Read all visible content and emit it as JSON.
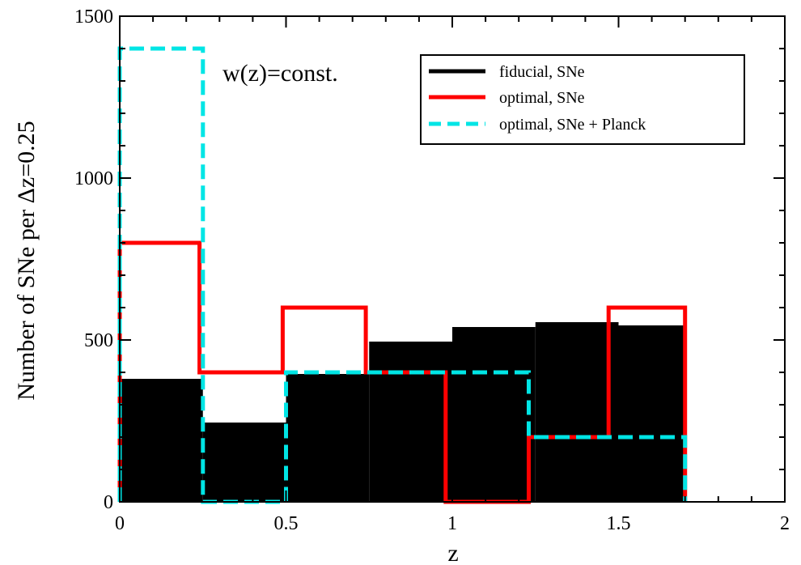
{
  "chart_data": {
    "type": "bar",
    "annotation": "w(z)=const.",
    "xlabel": "z",
    "ylabel": "Number of SNe per Δz=0.25",
    "xlim": [
      0,
      2
    ],
    "ylim": [
      0,
      1500
    ],
    "xticks": [
      0,
      0.5,
      1,
      1.5,
      2
    ],
    "xtick_labels": [
      "0",
      "0.5",
      "1",
      "1.5",
      "2"
    ],
    "yticks": [
      0,
      500,
      1000,
      1500
    ],
    "ytick_labels": [
      "0",
      "500",
      "1000",
      "1500"
    ],
    "grid": false,
    "legend_placement": "top-right",
    "bin_edges": [
      0,
      0.25,
      0.5,
      0.75,
      1.0,
      1.25,
      1.5,
      1.75
    ],
    "series": [
      {
        "name": "fiducial, SNe",
        "style": "filled",
        "color": "#000000",
        "bins": [
          {
            "x0": 0,
            "x1": 0.25,
            "y": 380
          },
          {
            "x0": 0.25,
            "x1": 0.5,
            "y": 245
          },
          {
            "x0": 0.5,
            "x1": 0.75,
            "y": 395
          },
          {
            "x0": 0.75,
            "x1": 1.0,
            "y": 495
          },
          {
            "x0": 1.0,
            "x1": 1.25,
            "y": 540
          },
          {
            "x0": 1.25,
            "x1": 1.5,
            "y": 555
          },
          {
            "x0": 1.5,
            "x1": 1.7,
            "y": 545
          }
        ]
      },
      {
        "name": "optimal, SNe",
        "style": "solid",
        "color": "#ff0000",
        "edges": [
          0,
          0.24,
          0.49,
          0.74,
          0.98,
          1.23,
          1.47,
          1.7
        ],
        "values": [
          800,
          400,
          600,
          400,
          0,
          200,
          600
        ]
      },
      {
        "name": "optimal, SNe + Planck",
        "style": "dashed",
        "color": "#00e5e5",
        "edges": [
          0,
          0.25,
          0.5,
          1.23,
          1.7
        ],
        "values": [
          1400,
          0,
          400,
          200
        ]
      }
    ]
  }
}
